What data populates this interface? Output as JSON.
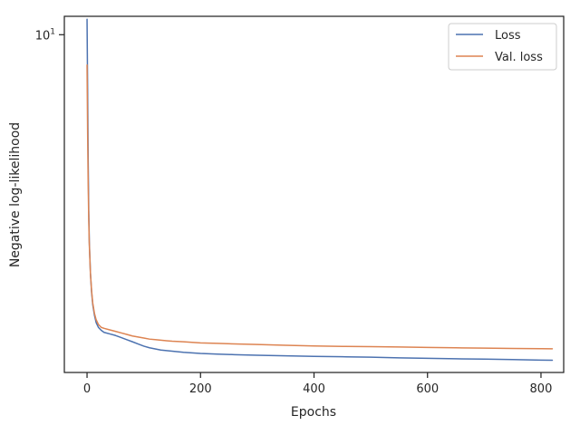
{
  "chart_data": {
    "type": "line",
    "title": "",
    "xlabel": "Epochs",
    "ylabel": "Negative log-likelihood",
    "xlim": [
      -40,
      840
    ],
    "ylim": [
      1.25,
      11.2
    ],
    "yscale": "log",
    "xticks": [
      0,
      200,
      400,
      600,
      800
    ],
    "yticks": [
      {
        "value": 10,
        "base": "10",
        "exponent": "1"
      }
    ],
    "grid": false,
    "legend": "top-right",
    "series": [
      {
        "name": "Loss",
        "color": "#4c72b0",
        "x": [
          0,
          1,
          2,
          3,
          4,
          6,
          8,
          10,
          13,
          16,
          20,
          25,
          30,
          40,
          50,
          60,
          70,
          80,
          90,
          100,
          110,
          120,
          130,
          140,
          150,
          170,
          200,
          230,
          260,
          300,
          350,
          400,
          450,
          500,
          550,
          600,
          650,
          700,
          750,
          800,
          820
        ],
        "y": [
          11.0,
          7.2,
          4.6,
          3.4,
          2.8,
          2.3,
          2.05,
          1.9,
          1.78,
          1.7,
          1.65,
          1.62,
          1.6,
          1.585,
          1.57,
          1.55,
          1.53,
          1.51,
          1.49,
          1.47,
          1.455,
          1.445,
          1.435,
          1.43,
          1.425,
          1.415,
          1.405,
          1.4,
          1.395,
          1.39,
          1.385,
          1.38,
          1.377,
          1.373,
          1.368,
          1.364,
          1.36,
          1.357,
          1.353,
          1.349,
          1.348
        ]
      },
      {
        "name": "Val. loss",
        "color": "#dd8452",
        "x": [
          0,
          1,
          2,
          3,
          4,
          6,
          8,
          10,
          13,
          16,
          20,
          25,
          30,
          40,
          50,
          60,
          70,
          80,
          90,
          100,
          110,
          120,
          130,
          140,
          150,
          170,
          200,
          230,
          260,
          300,
          350,
          400,
          450,
          500,
          550,
          600,
          650,
          700,
          750,
          800,
          820
        ],
        "y": [
          8.3,
          5.5,
          4.0,
          3.2,
          2.75,
          2.3,
          2.07,
          1.92,
          1.8,
          1.73,
          1.68,
          1.65,
          1.64,
          1.625,
          1.61,
          1.595,
          1.58,
          1.565,
          1.555,
          1.545,
          1.535,
          1.53,
          1.525,
          1.52,
          1.515,
          1.51,
          1.5,
          1.495,
          1.49,
          1.485,
          1.478,
          1.472,
          1.468,
          1.465,
          1.462,
          1.458,
          1.455,
          1.452,
          1.449,
          1.447,
          1.446
        ]
      }
    ]
  }
}
